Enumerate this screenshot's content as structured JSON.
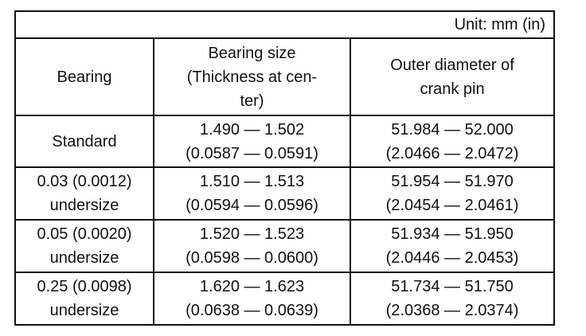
{
  "table": {
    "unit_note": "Unit: mm (in)",
    "headers": {
      "bearing": "Bearing",
      "bearing_size": [
        "Bearing size",
        "(Thickness at cen-",
        "ter)"
      ],
      "outer_diameter": [
        "Outer diameter of",
        "crank pin"
      ]
    },
    "rows": [
      {
        "bearing": [
          "Standard"
        ],
        "bearing_size": [
          "1.490 — 1.502",
          "(0.0587 — 0.0591)"
        ],
        "outer_diameter": [
          "51.984 — 52.000",
          "(2.0466 — 2.0472)"
        ]
      },
      {
        "bearing": [
          "0.03 (0.0012)",
          "undersize"
        ],
        "bearing_size": [
          "1.510 — 1.513",
          "(0.0594 — 0.0596)"
        ],
        "outer_diameter": [
          "51.954 — 51.970",
          "(2.0454 — 2.0461)"
        ]
      },
      {
        "bearing": [
          "0.05 (0.0020)",
          "undersize"
        ],
        "bearing_size": [
          "1.520 — 1.523",
          "(0.0598 — 0.0600)"
        ],
        "outer_diameter": [
          "51.934 — 51.950",
          "(2.0446 — 2.0453)"
        ]
      },
      {
        "bearing": [
          "0.25 (0.0098)",
          "undersize"
        ],
        "bearing_size": [
          "1.620 — 1.623",
          "(0.0638 — 0.0639)"
        ],
        "outer_diameter": [
          "51.734 — 51.750",
          "(2.0368 — 2.0374)"
        ]
      }
    ]
  }
}
